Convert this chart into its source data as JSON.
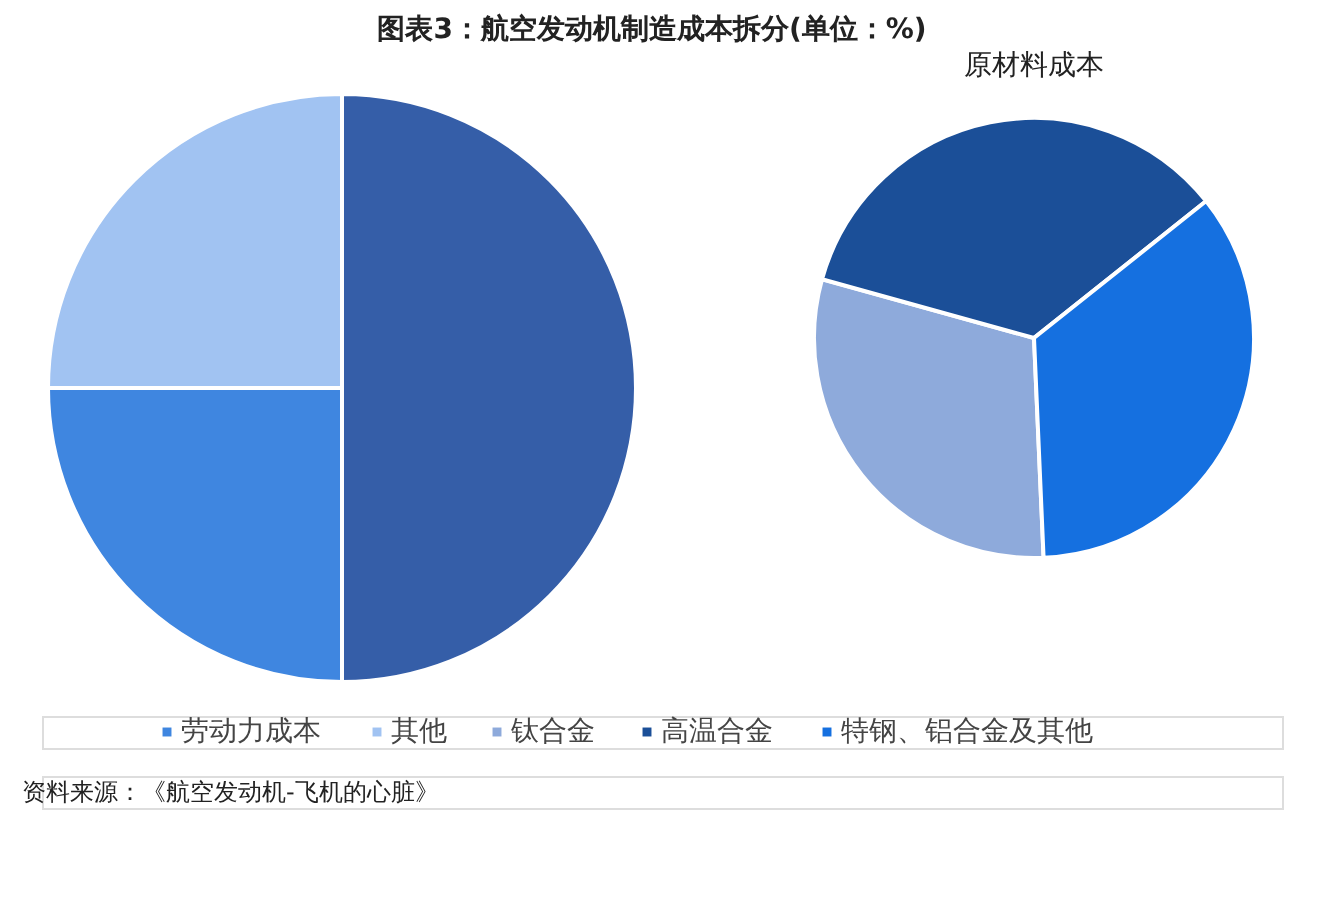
{
  "chart_data": [
    {
      "type": "pie",
      "title": "图表3：航空发动机制造成本拆分(单位：%)",
      "categories": [
        null,
        "劳动力成本",
        "其他"
      ],
      "values": [
        50,
        25,
        25
      ],
      "colors": [
        "#355ea8",
        "#3f86e0",
        "#a1c3f2"
      ],
      "legend": "bottom",
      "annotations": [
        "资料来源：《航空发动机-飞机的心脏》"
      ]
    },
    {
      "type": "pie",
      "title": "原材料成本",
      "categories": [
        "钛合金",
        "高温合金",
        "特钢、铝合金及其他"
      ],
      "values": [
        30,
        35,
        35
      ],
      "colors": [
        "#8eaadb",
        "#1b4f98",
        "#1570e0"
      ],
      "legend": "bottom"
    }
  ]
}
